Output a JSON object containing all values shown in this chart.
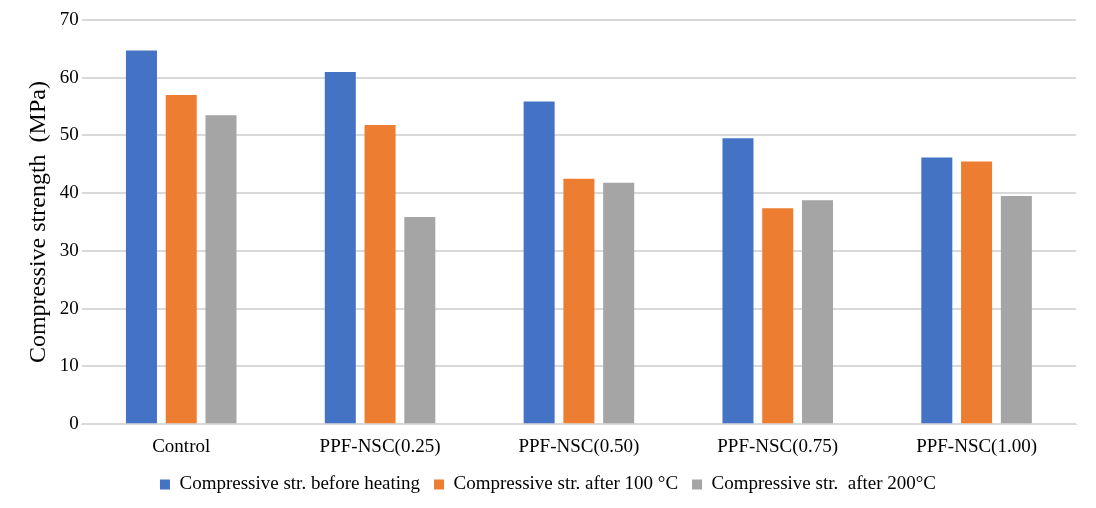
{
  "chart_data": {
    "type": "bar",
    "ylabel": "Compressive strength  (MPa)",
    "categories": [
      "Control",
      "PPF-NSC(0.25)",
      "PPF-NSC(0.50)",
      "PPF-NSC(0.75)",
      "PPF-NSC(1.00)"
    ],
    "series": [
      {
        "name": "Compressive str. before heating",
        "color": "#4472c4",
        "values": [
          64.7,
          61,
          55.9,
          49.5,
          46.2
        ]
      },
      {
        "name": "Compressive str. after 100 °C",
        "color": "#ed7d31",
        "values": [
          57,
          51.8,
          42.5,
          37.4,
          45.5
        ]
      },
      {
        "name": "Compressive str.  after 200°C",
        "color": "#a5a5a5",
        "values": [
          53.5,
          35.9,
          41.8,
          38.8,
          39.5
        ]
      }
    ],
    "ylim": [
      0,
      70
    ],
    "yticks": [
      0,
      10,
      20,
      30,
      40,
      50,
      60,
      70
    ],
    "grid": "y",
    "legend": "bottom"
  }
}
